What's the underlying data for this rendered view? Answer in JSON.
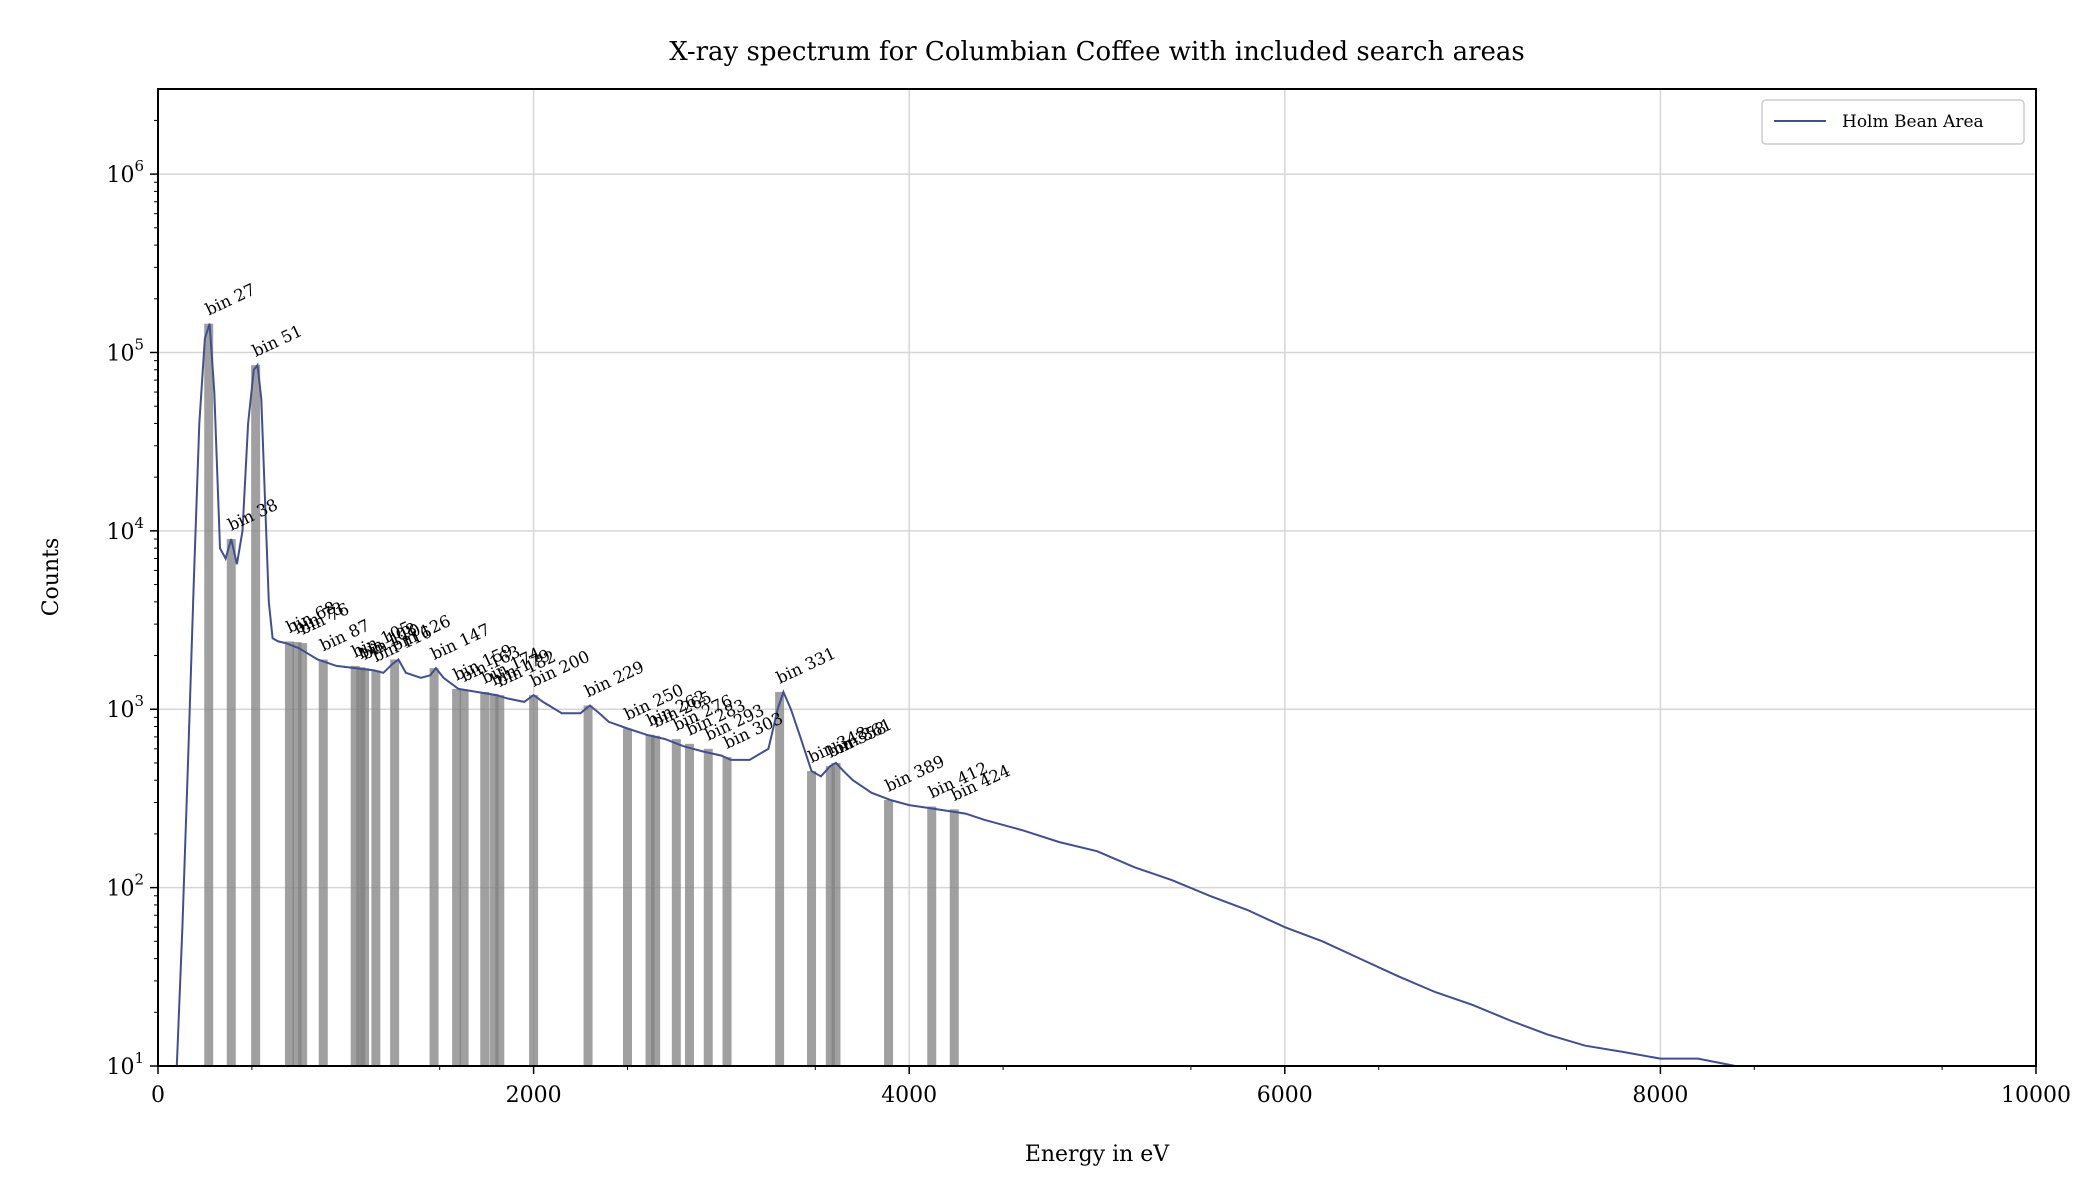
{
  "chart_data": {
    "type": "line",
    "title": "X-ray spectrum for Columbian Coffee with included search areas",
    "xlabel": "Energy in eV",
    "ylabel": "Counts",
    "xlim": [
      0,
      10000
    ],
    "ylim": [
      10,
      3000000
    ],
    "yscale": "log",
    "grid": true,
    "legend_position": "top-right",
    "x_ticks": [
      0,
      2000,
      4000,
      6000,
      8000,
      10000
    ],
    "y_ticks": [
      {
        "base": "10",
        "exp": "1",
        "value": 10
      },
      {
        "base": "10",
        "exp": "2",
        "value": 100
      },
      {
        "base": "10",
        "exp": "3",
        "value": 1000
      },
      {
        "base": "10",
        "exp": "4",
        "value": 10000
      },
      {
        "base": "10",
        "exp": "5",
        "value": 100000
      },
      {
        "base": "10",
        "exp": "6",
        "value": 1000000
      }
    ],
    "series": [
      {
        "name": "Holm Bean Area",
        "color": "#414f8f",
        "x": [
          100,
          130,
          160,
          190,
          220,
          250,
          275,
          300,
          330,
          360,
          390,
          420,
          450,
          480,
          510,
          530,
          550,
          570,
          590,
          610,
          640,
          680,
          750,
          850,
          950,
          1050,
          1150,
          1200,
          1250,
          1280,
          1320,
          1400,
          1450,
          1480,
          1520,
          1600,
          1700,
          1800,
          1860,
          1950,
          2000,
          2050,
          2150,
          2250,
          2300,
          2350,
          2400,
          2500,
          2600,
          2700,
          2800,
          2900,
          3000,
          3050,
          3150,
          3250,
          3300,
          3330,
          3370,
          3420,
          3480,
          3530,
          3580,
          3610,
          3650,
          3700,
          3800,
          3900,
          4000,
          4100,
          4200,
          4300,
          4400,
          4600,
          4800,
          5000,
          5200,
          5400,
          5600,
          5800,
          6000,
          6200,
          6400,
          6600,
          6800,
          7000,
          7200,
          7400,
          7600,
          7800,
          8000,
          8200,
          8400,
          8600,
          8800,
          9000,
          9200,
          9400,
          9600
        ],
        "y": [
          10,
          60,
          500,
          5000,
          40000,
          120000,
          145000,
          60000,
          8000,
          7000,
          9000,
          6500,
          10000,
          40000,
          80000,
          85000,
          55000,
          15000,
          4000,
          2500,
          2400,
          2350,
          2200,
          1900,
          1750,
          1700,
          1650,
          1600,
          1800,
          1900,
          1600,
          1500,
          1550,
          1700,
          1500,
          1300,
          1250,
          1200,
          1150,
          1100,
          1200,
          1100,
          950,
          950,
          1050,
          950,
          850,
          780,
          720,
          680,
          620,
          580,
          550,
          520,
          520,
          600,
          1000,
          1250,
          1000,
          700,
          450,
          420,
          480,
          500,
          450,
          400,
          340,
          310,
          290,
          280,
          270,
          260,
          240,
          210,
          180,
          160,
          130,
          110,
          90,
          75,
          60,
          50,
          40,
          32,
          26,
          22,
          18,
          15,
          13,
          12,
          11,
          11,
          10,
          10,
          10,
          10,
          10,
          10,
          10
        ]
      }
    ],
    "search_areas": [
      {
        "label": "bin 27",
        "energy": 270,
        "counts": 145000
      },
      {
        "label": "bin 38",
        "energy": 390,
        "counts": 9000
      },
      {
        "label": "bin 51",
        "energy": 520,
        "counts": 85000
      },
      {
        "label": "bin 68",
        "energy": 700,
        "counts": 2400
      },
      {
        "label": "bin 73",
        "energy": 740,
        "counts": 2380
      },
      {
        "label": "bin 76",
        "energy": 770,
        "counts": 2350
      },
      {
        "label": "bin 87",
        "energy": 880,
        "counts": 1900
      },
      {
        "label": "bin 105",
        "energy": 1050,
        "counts": 1750
      },
      {
        "label": "bin 108",
        "energy": 1080,
        "counts": 1720
      },
      {
        "label": "bin 110",
        "energy": 1100,
        "counts": 1700
      },
      {
        "label": "bin 116",
        "energy": 1160,
        "counts": 1650
      },
      {
        "label": "bin 126",
        "energy": 1260,
        "counts": 1900
      },
      {
        "label": "bin 147",
        "energy": 1470,
        "counts": 1700
      },
      {
        "label": "bin 159",
        "energy": 1590,
        "counts": 1300
      },
      {
        "label": "bin 163",
        "energy": 1630,
        "counts": 1280
      },
      {
        "label": "bin 174",
        "energy": 1740,
        "counts": 1250
      },
      {
        "label": "bin 179",
        "energy": 1790,
        "counts": 1220
      },
      {
        "label": "bin 182",
        "energy": 1820,
        "counts": 1200
      },
      {
        "label": "bin 200",
        "energy": 2000,
        "counts": 1200
      },
      {
        "label": "bin 229",
        "energy": 2290,
        "counts": 1050
      },
      {
        "label": "bin 250",
        "energy": 2500,
        "counts": 780
      },
      {
        "label": "bin 262",
        "energy": 2620,
        "counts": 720
      },
      {
        "label": "bin 265",
        "energy": 2650,
        "counts": 710
      },
      {
        "label": "bin 276",
        "energy": 2760,
        "counts": 680
      },
      {
        "label": "bin 283",
        "energy": 2830,
        "counts": 640
      },
      {
        "label": "bin 293",
        "energy": 2930,
        "counts": 600
      },
      {
        "label": "bin 303",
        "energy": 3030,
        "counts": 540
      },
      {
        "label": "bin 331",
        "energy": 3310,
        "counts": 1250
      },
      {
        "label": "bin 348",
        "energy": 3480,
        "counts": 450
      },
      {
        "label": "bin 358",
        "energy": 3580,
        "counts": 480
      },
      {
        "label": "bin 361",
        "energy": 3610,
        "counts": 500
      },
      {
        "label": "bin 389",
        "energy": 3890,
        "counts": 310
      },
      {
        "label": "bin 412",
        "energy": 4120,
        "counts": 285
      },
      {
        "label": "bin 424",
        "energy": 4240,
        "counts": 275
      }
    ]
  }
}
